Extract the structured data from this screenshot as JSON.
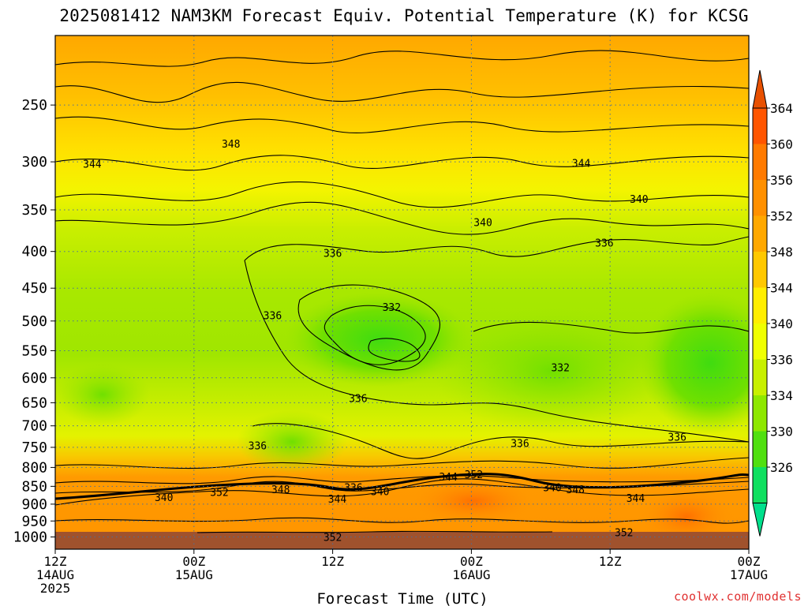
{
  "title": "2025081412 NAM3KM Forecast Equiv. Potential Temperature (K) for KCSG",
  "credit": "coolwx.com/models",
  "chart_data": {
    "type": "heatmap",
    "title": "2025081412 NAM3KM Forecast Equiv. Potential Temperature (K) for KCSG",
    "xlabel": "Forecast Time (UTC)",
    "ylabel": "",
    "x_ticks": [
      {
        "hour": 0,
        "lines": [
          "12Z",
          "14AUG",
          "2025"
        ]
      },
      {
        "hour": 12,
        "lines": [
          "00Z",
          "15AUG"
        ]
      },
      {
        "hour": 24,
        "lines": [
          "12Z"
        ]
      },
      {
        "hour": 36,
        "lines": [
          "00Z",
          "16AUG"
        ]
      },
      {
        "hour": 48,
        "lines": [
          "12Z"
        ]
      },
      {
        "hour": 60,
        "lines": [
          "00Z",
          "17AUG"
        ]
      }
    ],
    "xlim_hours": [
      0,
      60
    ],
    "y_ticks": [
      250,
      300,
      350,
      400,
      450,
      500,
      550,
      600,
      650,
      700,
      750,
      800,
      850,
      900,
      950,
      1000
    ],
    "ylim_hPa": [
      200,
      1040
    ],
    "y_scale": "log",
    "grid": true,
    "colorbar": {
      "labels": [
        364,
        360,
        356,
        352,
        348,
        344,
        340,
        336,
        334,
        330,
        326
      ],
      "colors": [
        "#ff5500",
        "#ff7a00",
        "#ff9000",
        "#ffa800",
        "#ffc800",
        "#ffee00",
        "#f0ff00",
        "#c8f000",
        "#8ee800",
        "#50e010",
        "#10e060"
      ],
      "extend": "both"
    },
    "contour_labels": [
      {
        "t": 3.2,
        "p": 302,
        "v": "344"
      },
      {
        "t": 15.2,
        "p": 283,
        "v": "348"
      },
      {
        "t": 24.0,
        "p": 402,
        "v": "336"
      },
      {
        "t": 29.1,
        "p": 478,
        "v": "332"
      },
      {
        "t": 18.8,
        "p": 491,
        "v": "336"
      },
      {
        "t": 45.5,
        "p": 301,
        "v": "344"
      },
      {
        "t": 37.0,
        "p": 364,
        "v": "340"
      },
      {
        "t": 50.5,
        "p": 338,
        "v": "340"
      },
      {
        "t": 47.5,
        "p": 389,
        "v": "336"
      },
      {
        "t": 43.7,
        "p": 580,
        "v": "332"
      },
      {
        "t": 26.2,
        "p": 640,
        "v": "336"
      },
      {
        "t": 40.2,
        "p": 740,
        "v": "336"
      },
      {
        "t": 53.8,
        "p": 725,
        "v": "336"
      },
      {
        "t": 17.5,
        "p": 745,
        "v": "336"
      },
      {
        "t": 9.4,
        "p": 880,
        "v": "340"
      },
      {
        "t": 14.2,
        "p": 866,
        "v": "352"
      },
      {
        "t": 19.5,
        "p": 858,
        "v": "348"
      },
      {
        "t": 24.4,
        "p": 884,
        "v": "344"
      },
      {
        "t": 25.8,
        "p": 853,
        "v": "336"
      },
      {
        "t": 28.1,
        "p": 863,
        "v": "340"
      },
      {
        "t": 34.0,
        "p": 824,
        "v": "344"
      },
      {
        "t": 36.2,
        "p": 818,
        "v": "352"
      },
      {
        "t": 43.0,
        "p": 853,
        "v": "340"
      },
      {
        "t": 45.0,
        "p": 858,
        "v": "348"
      },
      {
        "t": 50.2,
        "p": 882,
        "v": "344"
      },
      {
        "t": 24.0,
        "p": 1000,
        "v": "352"
      },
      {
        "t": 49.2,
        "p": 985,
        "v": "352"
      }
    ]
  }
}
